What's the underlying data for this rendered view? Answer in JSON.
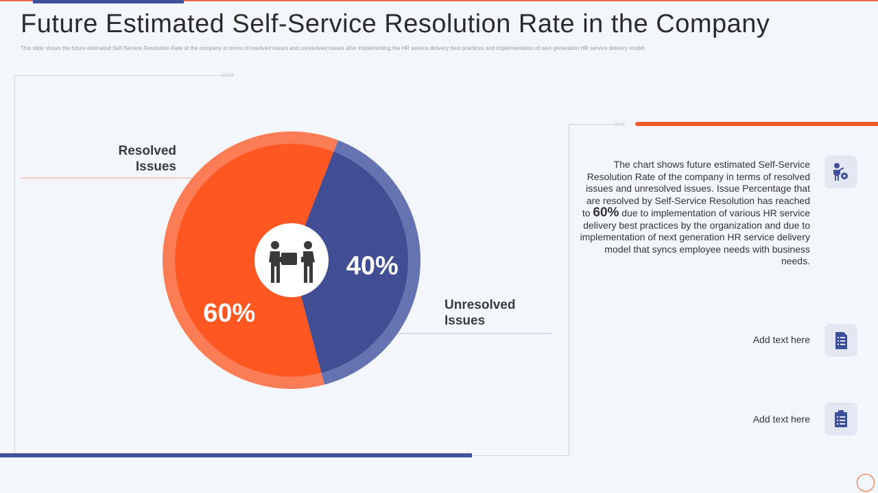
{
  "title": "Future Estimated Self-Service Resolution Rate in the Company",
  "subtitle": "This slide shows the future estimated Self-Service Resolution Rate of the company in terms of resolved issues and unresolved issues after implementing the HR service delivery best practices and implementation of next generation HR service delivery model.",
  "chart_data": {
    "type": "pie",
    "categories": [
      "Resolved Issues",
      "Unresolved Issues"
    ],
    "values": [
      60,
      40
    ],
    "unit": "%",
    "data_labels": [
      "60%",
      "40%"
    ],
    "colors": [
      "#ff5722",
      "#414e93"
    ],
    "title": ""
  },
  "labels": {
    "resolved_line1": "Resolved",
    "resolved_line2": "Issues",
    "unresolved_line1": "Unresolved",
    "unresolved_line2": "Issues"
  },
  "description": {
    "part1": "The chart shows future estimated Self-Service Resolution Rate of the company in terms of resolved issues and unresolved issues. Issue Percentage that are resolved by Self-Service Resolution has reached to ",
    "highlight": "60%",
    "part2": " due to implementation of various HR service delivery best practices by the organization and due to implementation of next generation HR service delivery model that syncs employee needs with business needs."
  },
  "items": [
    {
      "text": "Add text here",
      "icon": "document-list-icon"
    },
    {
      "text": "Add text here",
      "icon": "clipboard-checklist-icon"
    }
  ],
  "icons": {
    "center": "people-handing-box-icon",
    "description": "person-gear-icon"
  }
}
